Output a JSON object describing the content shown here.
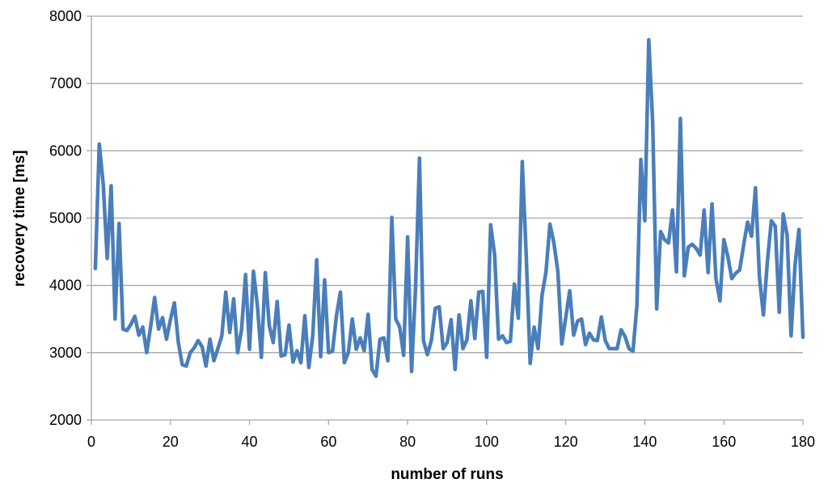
{
  "chart_data": {
    "type": "line",
    "xlabel": "number of runs",
    "ylabel": "recovery time [ms]",
    "xlim": [
      0,
      180
    ],
    "ylim": [
      2000,
      8000
    ],
    "xticks": [
      0,
      20,
      40,
      60,
      80,
      100,
      120,
      140,
      160,
      180
    ],
    "yticks": [
      2000,
      3000,
      4000,
      5000,
      6000,
      7000,
      8000
    ],
    "grid": {
      "horizontal": true,
      "vertical": false
    },
    "legend": "none",
    "line_color": "#4a7ebb",
    "series": [
      {
        "x": [
          1,
          2,
          3,
          4,
          5,
          6,
          7,
          8,
          9,
          10,
          11,
          12,
          13,
          14,
          15,
          16,
          17,
          18,
          19,
          20,
          21,
          22,
          23,
          24,
          25,
          26,
          27,
          28,
          29,
          30,
          31,
          32,
          33,
          34,
          35,
          36,
          37,
          38,
          39,
          40,
          41,
          42,
          43,
          44,
          45,
          46,
          47,
          48,
          49,
          50,
          51,
          52,
          53,
          54,
          55,
          56,
          57,
          58,
          59,
          60,
          61,
          62,
          63,
          64,
          65,
          66,
          67,
          68,
          69,
          70,
          71,
          72,
          73,
          74,
          75,
          76,
          77,
          78,
          79,
          80,
          81,
          82,
          83,
          84,
          85,
          86,
          87,
          88,
          89,
          90,
          91,
          92,
          93,
          94,
          95,
          96,
          97,
          98,
          99,
          100,
          101,
          102,
          103,
          104,
          105,
          106,
          107,
          108,
          109,
          110,
          111,
          112,
          113,
          114,
          115,
          116,
          117,
          118,
          119,
          120,
          121,
          122,
          123,
          124,
          125,
          126,
          127,
          128,
          129,
          130,
          131,
          132,
          133,
          134,
          135,
          136,
          137,
          138,
          139,
          140,
          141,
          142,
          143,
          144,
          145,
          146,
          147,
          148,
          149,
          150,
          151,
          152,
          153,
          154,
          155,
          156,
          157,
          158,
          159,
          160,
          161,
          162,
          163,
          164,
          165,
          166,
          167,
          168,
          169,
          170,
          171,
          172,
          173,
          174,
          175,
          176,
          177,
          178,
          179,
          180
        ],
        "values": [
          4250,
          6100,
          5500,
          4400,
          5480,
          3500,
          4920,
          3350,
          3330,
          3420,
          3540,
          3260,
          3380,
          3000,
          3390,
          3820,
          3350,
          3520,
          3200,
          3490,
          3740,
          3150,
          2820,
          2800,
          3000,
          3070,
          3180,
          3090,
          2800,
          3200,
          2880,
          3060,
          3250,
          3900,
          3300,
          3800,
          3000,
          3350,
          4160,
          3050,
          4210,
          3700,
          2930,
          4190,
          3400,
          3150,
          3760,
          2950,
          2970,
          3410,
          2860,
          3030,
          2850,
          3550,
          2780,
          3250,
          4380,
          2940,
          4080,
          3000,
          3020,
          3550,
          3900,
          2850,
          3000,
          3500,
          3050,
          3220,
          3030,
          3570,
          2750,
          2650,
          3200,
          3220,
          2880,
          5010,
          3500,
          3380,
          2960,
          4720,
          2720,
          3950,
          5890,
          3180,
          2970,
          3180,
          3660,
          3680,
          3060,
          3150,
          3490,
          2750,
          3560,
          3060,
          3190,
          3770,
          3210,
          3900,
          3910,
          2930,
          4900,
          4460,
          3200,
          3250,
          3150,
          3170,
          4020,
          3510,
          5840,
          4440,
          2840,
          3380,
          3060,
          3850,
          4200,
          4910,
          4630,
          4210,
          3130,
          3520,
          3920,
          3260,
          3470,
          3500,
          3120,
          3290,
          3190,
          3180,
          3530,
          3180,
          3060,
          3060,
          3060,
          3340,
          3240,
          3060,
          3020,
          3700,
          5870,
          4960,
          7650,
          6400,
          3650,
          4800,
          4680,
          4630,
          5120,
          4200,
          6480,
          4140,
          4570,
          4610,
          4550,
          4450,
          5120,
          4190,
          5210,
          4100,
          3770,
          4680,
          4430,
          4100,
          4180,
          4230,
          4600,
          4940,
          4730,
          5450,
          4120,
          3560,
          4350,
          4960,
          4880,
          3600,
          5060,
          4750,
          3250,
          4300,
          4830,
          3230
        ]
      }
    ]
  }
}
